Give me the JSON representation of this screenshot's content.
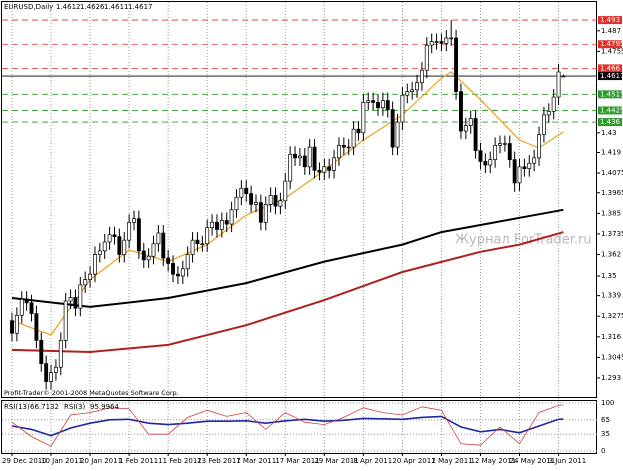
{
  "chart_data": {
    "type": "candlestick",
    "symbol": "EURUSD,Daily",
    "categories": [
      "29 Dec 2010",
      null,
      null,
      null,
      null,
      null,
      null,
      null,
      "10 Jan 2011",
      null,
      null,
      null,
      null,
      null,
      null,
      null,
      "20 Jan 2011",
      null,
      null,
      null,
      null,
      null,
      null,
      null,
      "1 Feb 2011",
      null,
      null,
      null,
      null,
      null,
      null,
      null,
      "11 Feb 2011",
      null,
      null,
      null,
      null,
      null,
      null,
      null,
      "23 Feb 2011",
      null,
      null,
      null,
      null,
      null,
      null,
      null,
      "7 Mar 2011",
      null,
      null,
      null,
      null,
      null,
      null,
      null,
      "17 Mar 2011",
      null,
      null,
      null,
      null,
      null,
      null,
      null,
      "29 Mar 2011",
      null,
      null,
      null,
      null,
      null,
      null,
      null,
      "8 Apr 2011",
      null,
      null,
      null,
      null,
      null,
      null,
      null,
      "20 Apr 2011",
      null,
      null,
      null,
      null,
      null,
      null,
      null,
      "2 May 2011",
      null,
      null,
      null,
      null,
      null,
      null,
      null,
      "12 May 2011",
      null,
      null,
      null,
      null,
      null,
      null,
      null,
      "24 May 2011",
      null,
      null,
      null,
      null,
      null,
      null,
      null,
      "3 Jun 2011",
      null
    ],
    "open": [
      1.325,
      1.318,
      1.328,
      1.337,
      1.335,
      1.329,
      1.314,
      1.301,
      1.291,
      1.296,
      1.299,
      1.314,
      1.336,
      1.338,
      1.332,
      1.345,
      1.348,
      1.351,
      1.362,
      1.364,
      1.369,
      1.373,
      1.372,
      1.362,
      1.37,
      1.38,
      1.382,
      1.364,
      1.359,
      1.361,
      1.368,
      1.374,
      1.36,
      1.357,
      1.351,
      1.35,
      1.354,
      1.362,
      1.37,
      1.368,
      1.368,
      1.377,
      1.38,
      1.376,
      1.381,
      1.379,
      1.387,
      1.394,
      1.399,
      1.396,
      1.39,
      1.391,
      1.38,
      1.39,
      1.395,
      1.389,
      1.392,
      1.403,
      1.418,
      1.416,
      1.417,
      1.411,
      1.422,
      1.409,
      1.408,
      1.411,
      1.409,
      1.416,
      1.423,
      1.422,
      1.422,
      1.432,
      1.43,
      1.447,
      1.448,
      1.447,
      1.444,
      1.448,
      1.443,
      1.422,
      1.436,
      1.451,
      1.453,
      1.454,
      1.458,
      1.465,
      1.479,
      1.481,
      1.481,
      1.48,
      1.483,
      1.483,
      1.453,
      1.431,
      1.434,
      1.438,
      1.42,
      1.414,
      1.412,
      1.415,
      1.423,
      1.424,
      1.424,
      1.415,
      1.402,
      1.411,
      1.41,
      1.413,
      1.416,
      1.429,
      1.44,
      1.442,
      1.45,
      1.4612
    ],
    "high": [
      1.3295,
      1.3325,
      1.3415,
      1.3415,
      1.3395,
      1.3335,
      1.3185,
      1.3055,
      1.3005,
      1.3035,
      1.3185,
      1.3405,
      1.3425,
      1.3425,
      1.3495,
      1.3525,
      1.3555,
      1.3665,
      1.3685,
      1.3735,
      1.3775,
      1.3775,
      1.3765,
      1.3745,
      1.3845,
      1.3865,
      1.3865,
      1.3685,
      1.3655,
      1.3725,
      1.3785,
      1.3785,
      1.3645,
      1.3615,
      1.3555,
      1.3585,
      1.3665,
      1.3745,
      1.3745,
      1.3725,
      1.3815,
      1.3845,
      1.3845,
      1.3855,
      1.3855,
      1.3915,
      1.3985,
      1.4035,
      1.4035,
      1.4005,
      1.3955,
      1.3955,
      1.3945,
      1.3995,
      1.3995,
      1.3965,
      1.4075,
      1.4225,
      1.4225,
      1.4215,
      1.4215,
      1.4265,
      1.4265,
      1.4135,
      1.4155,
      1.4155,
      1.4205,
      1.4275,
      1.4275,
      1.4265,
      1.4365,
      1.4365,
      1.4515,
      1.4525,
      1.4525,
      1.4515,
      1.4525,
      1.4525,
      1.4475,
      1.4405,
      1.4555,
      1.4575,
      1.4585,
      1.4625,
      1.4695,
      1.4835,
      1.4855,
      1.4855,
      1.4855,
      1.4875,
      1.493,
      1.4875,
      1.4575,
      1.4385,
      1.4425,
      1.4425,
      1.4245,
      1.4185,
      1.4195,
      1.4275,
      1.4285,
      1.4285,
      1.4285,
      1.4195,
      1.4155,
      1.4155,
      1.4175,
      1.4205,
      1.4335,
      1.4445,
      1.4465,
      1.4545,
      1.4685,
      1.4626
    ],
    "low": [
      1.3135,
      1.3135,
      1.3235,
      1.3305,
      1.3245,
      1.3095,
      1.2965,
      1.2865,
      1.2865,
      1.2915,
      1.2945,
      1.3095,
      1.3315,
      1.3275,
      1.3275,
      1.3405,
      1.3435,
      1.3465,
      1.3575,
      1.3595,
      1.3645,
      1.3675,
      1.3575,
      1.3575,
      1.3655,
      1.3755,
      1.3595,
      1.3545,
      1.3545,
      1.3565,
      1.3635,
      1.3555,
      1.3525,
      1.3465,
      1.3455,
      1.3455,
      1.3495,
      1.3575,
      1.3635,
      1.3635,
      1.3635,
      1.3725,
      1.3715,
      1.3715,
      1.3745,
      1.3745,
      1.3825,
      1.3895,
      1.3915,
      1.3855,
      1.3855,
      1.3755,
      1.3755,
      1.3855,
      1.3845,
      1.3845,
      1.3875,
      1.3985,
      1.4115,
      1.4115,
      1.4065,
      1.4065,
      1.4045,
      1.4035,
      1.4035,
      1.4045,
      1.4045,
      1.4115,
      1.4175,
      1.4175,
      1.4175,
      1.4255,
      1.4255,
      1.4425,
      1.4425,
      1.4395,
      1.4395,
      1.4385,
      1.4175,
      1.4175,
      1.4315,
      1.4465,
      1.4485,
      1.4495,
      1.4535,
      1.4605,
      1.4745,
      1.4765,
      1.4755,
      1.4755,
      1.4785,
      1.4485,
      1.4265,
      1.4265,
      1.4295,
      1.4155,
      1.4095,
      1.4075,
      1.4075,
      1.4105,
      1.4185,
      1.4195,
      1.4105,
      1.397,
      1.3975,
      1.4055,
      1.4055,
      1.4085,
      1.4115,
      1.4245,
      1.4355,
      1.4375,
      1.4455,
      1.4611
    ],
    "close": [
      1.318,
      1.328,
      1.337,
      1.335,
      1.329,
      1.314,
      1.301,
      1.291,
      1.296,
      1.299,
      1.314,
      1.336,
      1.338,
      1.332,
      1.345,
      1.348,
      1.351,
      1.362,
      1.364,
      1.369,
      1.373,
      1.372,
      1.362,
      1.37,
      1.38,
      1.382,
      1.364,
      1.359,
      1.361,
      1.368,
      1.374,
      1.36,
      1.357,
      1.351,
      1.35,
      1.354,
      1.362,
      1.37,
      1.368,
      1.368,
      1.377,
      1.38,
      1.376,
      1.381,
      1.379,
      1.387,
      1.394,
      1.399,
      1.396,
      1.39,
      1.391,
      1.38,
      1.39,
      1.395,
      1.389,
      1.392,
      1.403,
      1.418,
      1.416,
      1.417,
      1.411,
      1.422,
      1.409,
      1.408,
      1.411,
      1.409,
      1.416,
      1.423,
      1.422,
      1.422,
      1.432,
      1.43,
      1.447,
      1.448,
      1.447,
      1.444,
      1.448,
      1.443,
      1.422,
      1.436,
      1.451,
      1.453,
      1.454,
      1.458,
      1.465,
      1.479,
      1.481,
      1.481,
      1.48,
      1.483,
      1.483,
      1.453,
      1.431,
      1.434,
      1.438,
      1.42,
      1.414,
      1.412,
      1.415,
      1.423,
      1.424,
      1.424,
      1.415,
      1.402,
      1.411,
      1.41,
      1.413,
      1.416,
      1.429,
      1.44,
      1.442,
      1.45,
      1.464,
      1.4617
    ],
    "up_color": "#ffffff",
    "down_color": "#000000",
    "ylim": [
      1.2818,
      1.5031
    ],
    "yticks": [
      1.293,
      1.3045,
      1.316,
      1.3275,
      1.339,
      1.35,
      1.362,
      1.3735,
      1.385,
      1.3965,
      1.4075,
      1.419,
      1.43,
      1.4755,
      1.487
    ],
    "levels": [
      {
        "value": 1.493,
        "color": "#e0302c",
        "dashed": true
      },
      {
        "value": 1.4795,
        "color": "#e0302c",
        "dashed": true
      },
      {
        "value": 1.466,
        "color": "#e0302c",
        "dashed": true
      },
      {
        "value": 1.4617,
        "color": "#000000",
        "dashed": false
      },
      {
        "value": 1.4515,
        "color": "#2e9a2e",
        "dashed": true
      },
      {
        "value": 1.4425,
        "color": "#2e9a2e",
        "dashed": true
      },
      {
        "value": 1.436,
        "color": "#2e9a2e",
        "dashed": true
      }
    ],
    "moving_averages": [
      {
        "color": "#e5a21c",
        "x": [
          0,
          8,
          16,
          24,
          32,
          40,
          48,
          56,
          64,
          72,
          80,
          88,
          90,
          96,
          104,
          108,
          113
        ],
        "values": [
          1.325,
          1.317,
          1.348,
          1.3645,
          1.358,
          1.3675,
          1.384,
          1.3935,
          1.409,
          1.426,
          1.44,
          1.4605,
          1.464,
          1.4485,
          1.426,
          1.4215,
          1.4305
        ]
      },
      {
        "color": "#000000",
        "x": [
          0,
          16,
          32,
          48,
          64,
          80,
          88,
          96,
          104,
          113
        ],
        "values": [
          1.3377,
          1.3327,
          1.3377,
          1.346,
          1.358,
          1.3675,
          1.3745,
          1.3785,
          1.3825,
          1.387
        ]
      },
      {
        "color": "#b0201c",
        "x": [
          0,
          16,
          32,
          48,
          64,
          80,
          96,
          104,
          113
        ],
        "values": [
          1.3087,
          1.3075,
          1.3115,
          1.3225,
          1.3365,
          1.3522,
          1.3635,
          1.3675,
          1.3745
        ]
      }
    ],
    "watermark": "Журнал ForTrader.ru",
    "copyright": "Profit-Trader© 2001-2008 MetaQuotes Software Corp.",
    "indicator": {
      "type": "line",
      "ylim": [
        0,
        100
      ],
      "yticks": [
        0,
        35,
        65,
        100
      ],
      "series": [
        {
          "name": "RSI(13)",
          "color": "#1c2aa0",
          "x": [
            0,
            4,
            8,
            12,
            16,
            20,
            24,
            28,
            32,
            36,
            40,
            44,
            48,
            52,
            56,
            60,
            64,
            68,
            72,
            76,
            80,
            84,
            88,
            92,
            96,
            100,
            104,
            108,
            112,
            113
          ],
          "values": [
            52,
            45,
            32,
            48,
            58,
            65,
            66,
            58,
            55,
            58,
            62,
            62,
            63,
            58,
            63,
            66,
            62,
            64,
            68,
            67,
            66,
            70,
            72,
            50,
            40,
            45,
            38,
            52,
            66,
            66.7132
          ]
        },
        {
          "name": "RSI(3)",
          "color": "#d04040",
          "x": [
            0,
            4,
            8,
            12,
            16,
            20,
            24,
            28,
            32,
            36,
            40,
            44,
            48,
            52,
            56,
            60,
            64,
            68,
            72,
            76,
            80,
            84,
            88,
            92,
            96,
            100,
            104,
            108,
            112,
            113
          ],
          "values": [
            60,
            30,
            10,
            75,
            80,
            90,
            88,
            35,
            35,
            70,
            85,
            72,
            80,
            45,
            80,
            60,
            55,
            70,
            90,
            80,
            75,
            92,
            85,
            15,
            12,
            50,
            15,
            80,
            95,
            95.9964
          ]
        }
      ]
    }
  }
}
